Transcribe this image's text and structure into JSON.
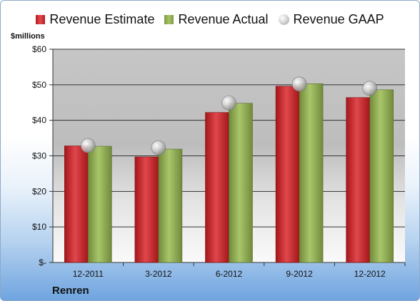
{
  "legend": {
    "estimate": "Revenue Estimate",
    "actual": "Revenue Actual",
    "gaap": "Revenue GAAP"
  },
  "units_label": "$millions",
  "company": "Renren",
  "colors": {
    "estimate": "#c9252b",
    "actual": "#8eaa56",
    "gaap": "#c0c0c0"
  },
  "chart_data": {
    "type": "bar",
    "categories": [
      "12-2011",
      "3-2012",
      "6-2012",
      "9-2012",
      "12-2012"
    ],
    "series": [
      {
        "name": "Revenue Estimate",
        "values": [
          32.8,
          29.7,
          42.2,
          49.6,
          46.4
        ]
      },
      {
        "name": "Revenue Actual",
        "values": [
          32.7,
          31.9,
          44.8,
          50.3,
          48.6
        ]
      },
      {
        "name": "Revenue GAAP",
        "values": [
          32.9,
          32.3,
          44.9,
          50.2,
          49.0
        ]
      }
    ],
    "ylabel": "$millions",
    "ylim": [
      0,
      60
    ],
    "yticks": [
      0,
      10,
      20,
      30,
      40,
      50,
      60
    ],
    "ytick_labels": [
      "$-",
      "$10",
      "$20",
      "$30",
      "$40",
      "$50",
      "$60"
    ],
    "grid": true,
    "legend_position": "top"
  }
}
